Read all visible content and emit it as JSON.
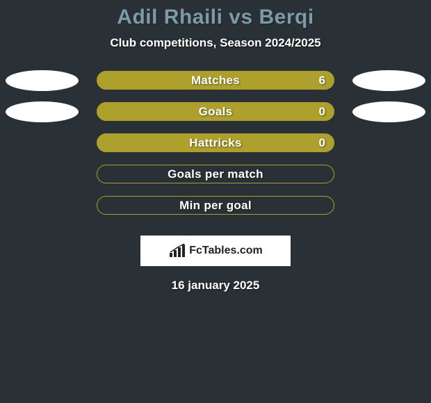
{
  "background_color": "#2a3136",
  "title": {
    "text": "Adil Rhaili vs Berqi",
    "color": "#7c9aa7",
    "fontsize": 30
  },
  "subtitle": {
    "text": "Club competitions, Season 2024/2025",
    "color": "#ffffff",
    "fontsize": 17
  },
  "bar_colors": {
    "fill": "#ada02d",
    "border": "#7f7520",
    "empty_fill": "#2a3136"
  },
  "ellipse_colors": {
    "left": "#ffffff",
    "right": "#ffffff"
  },
  "rows": [
    {
      "label": "Matches",
      "value": "6",
      "show_value": true,
      "filled": true,
      "left_ellipse": true,
      "right_ellipse": true
    },
    {
      "label": "Goals",
      "value": "0",
      "show_value": true,
      "filled": true,
      "left_ellipse": true,
      "right_ellipse": true
    },
    {
      "label": "Hattricks",
      "value": "0",
      "show_value": true,
      "filled": true,
      "left_ellipse": false,
      "right_ellipse": false
    },
    {
      "label": "Goals per match",
      "value": "",
      "show_value": false,
      "filled": false,
      "left_ellipse": false,
      "right_ellipse": false
    },
    {
      "label": "Min per goal",
      "value": "",
      "show_value": false,
      "filled": false,
      "left_ellipse": false,
      "right_ellipse": false
    }
  ],
  "footer": {
    "brand": "FcTables.com",
    "box_bg": "#ffffff"
  },
  "date": {
    "text": "16 january 2025",
    "color": "#ffffff"
  }
}
